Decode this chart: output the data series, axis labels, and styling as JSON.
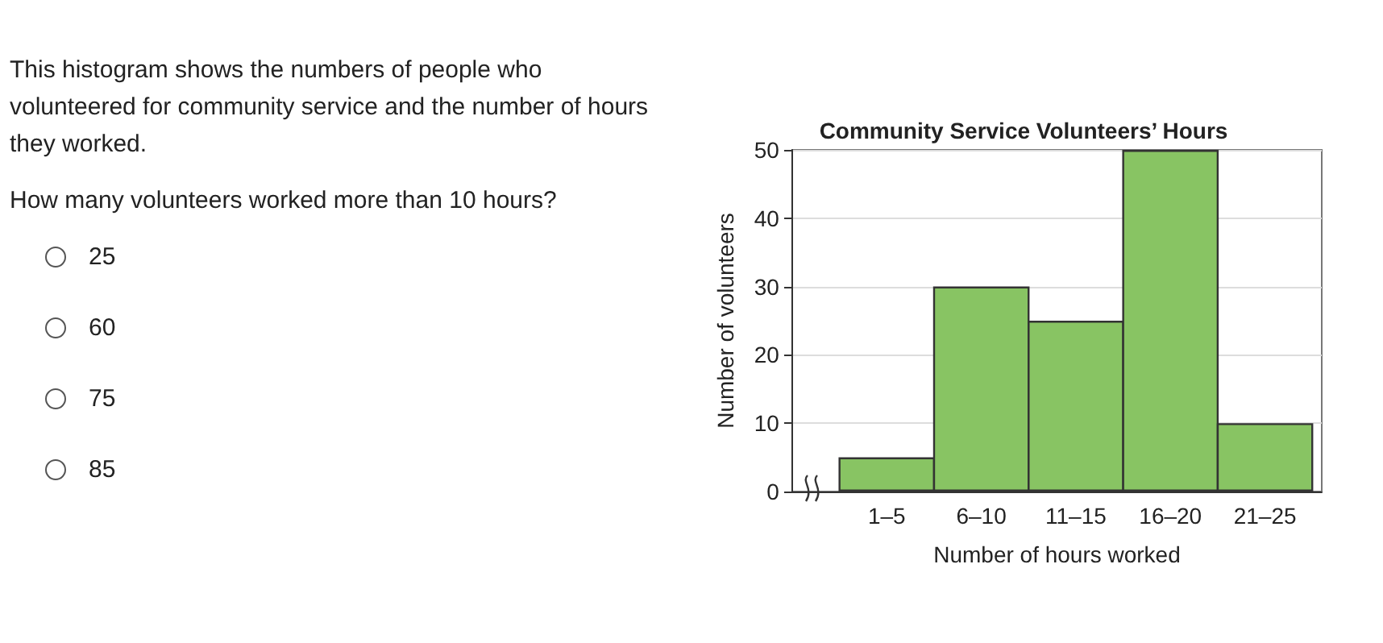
{
  "chart_data": {
    "type": "bar",
    "title": "Community Service Volunteers’ Hours",
    "xlabel": "Number of hours worked",
    "ylabel": "Number of volunteers",
    "categories": [
      "1–5",
      "6–10",
      "11–15",
      "16–20",
      "21–25"
    ],
    "values": [
      5,
      30,
      25,
      50,
      10
    ],
    "color": "#88c463",
    "ylim": [
      0,
      50
    ],
    "yticks": [
      0,
      10,
      20,
      30,
      40,
      50
    ],
    "grid": "y",
    "annotations": [
      "This histogram shows the numbers of people who volunteered for community service and the number of hours they worked.",
      "How many volunteers worked more than 10 hours?",
      "25",
      "60",
      "75",
      "85"
    ]
  }
}
